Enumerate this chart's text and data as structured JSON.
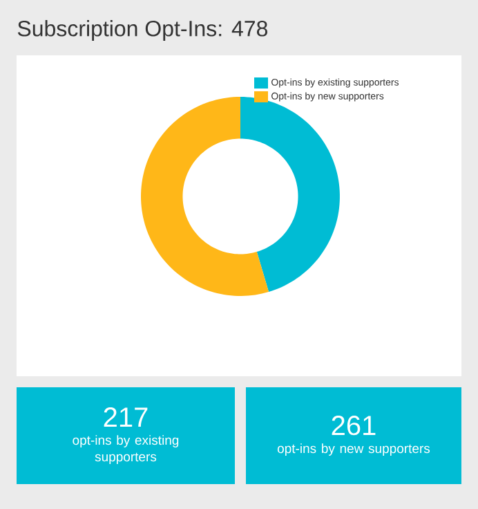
{
  "chart_data": {
    "type": "donut",
    "title": "Subscription Opt-Ins: 478",
    "categories": [
      "Opt-ins by existing supporters",
      "Opt-ins by new supporters"
    ],
    "values": [
      45.4,
      54.6
    ],
    "colors": [
      "#00bcd4",
      "#ffb718"
    ],
    "legend": "top right",
    "annotations": [
      "217",
      "opt-ins by existing supporters",
      "261",
      "opt-ins by new supporters"
    ]
  }
}
